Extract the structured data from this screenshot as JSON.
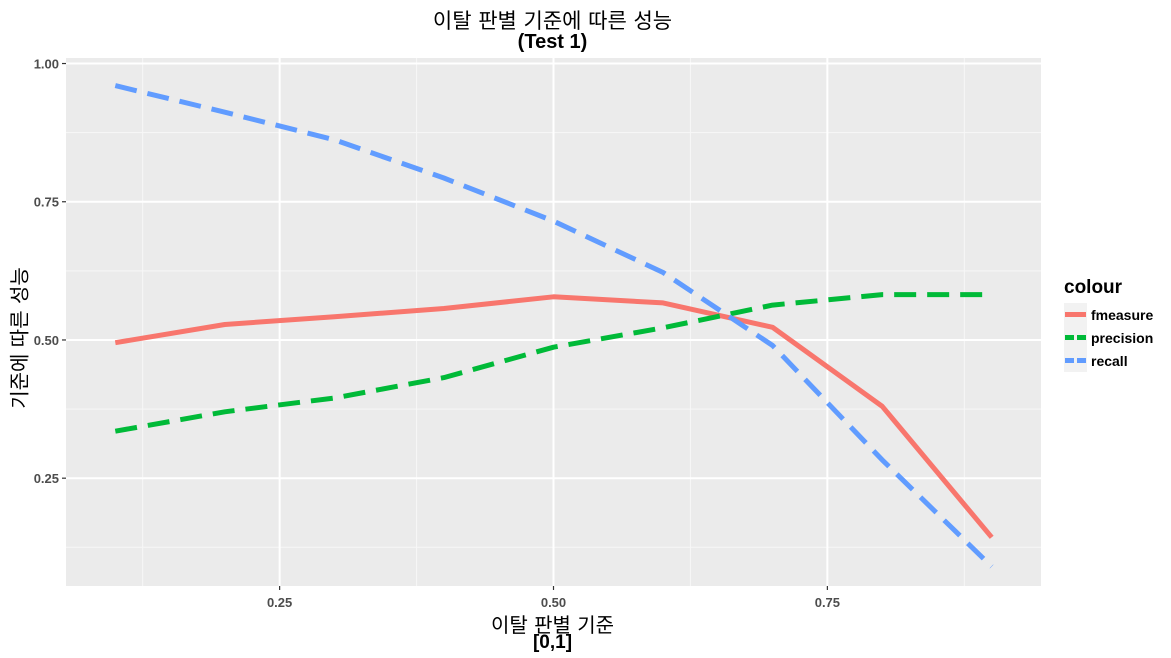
{
  "chart_data": {
    "type": "line",
    "title": "이탈 판별 기준에 따른 성능",
    "subtitle": "(Test 1)",
    "xlabel": "이탈 판별 기준",
    "xlabel_sub": "[0,1]",
    "ylabel": "기준에 따른 성능",
    "x": [
      0.1,
      0.2,
      0.3,
      0.4,
      0.5,
      0.6,
      0.7,
      0.8,
      0.9
    ],
    "xlim": [
      0.055,
      0.945
    ],
    "ylim": [
      0.055,
      1.01
    ],
    "x_ticks": [
      0.25,
      0.5,
      0.75
    ],
    "x_tick_labels": [
      "0.25",
      "0.50",
      "0.75"
    ],
    "y_ticks": [
      0.25,
      0.5,
      0.75,
      1.0
    ],
    "y_tick_labels": [
      "0.25",
      "0.50",
      "0.75",
      "1.00"
    ],
    "grid": true,
    "legend_title": "colour",
    "legend_position": "right",
    "series": [
      {
        "name": "fmeasure",
        "color": "#F8766D",
        "dash": "solid",
        "values": [
          0.495,
          0.528,
          0.542,
          0.557,
          0.578,
          0.567,
          0.523,
          0.38,
          0.143
        ]
      },
      {
        "name": "precision",
        "color": "#00BA38",
        "dash": "dashed",
        "values": [
          0.335,
          0.37,
          0.395,
          0.432,
          0.487,
          0.522,
          0.563,
          0.582,
          0.582
        ]
      },
      {
        "name": "recall",
        "color": "#619CFF",
        "dash": "dashed",
        "values": [
          0.96,
          0.912,
          0.862,
          0.793,
          0.715,
          0.622,
          0.49,
          0.283,
          0.09
        ]
      }
    ]
  }
}
